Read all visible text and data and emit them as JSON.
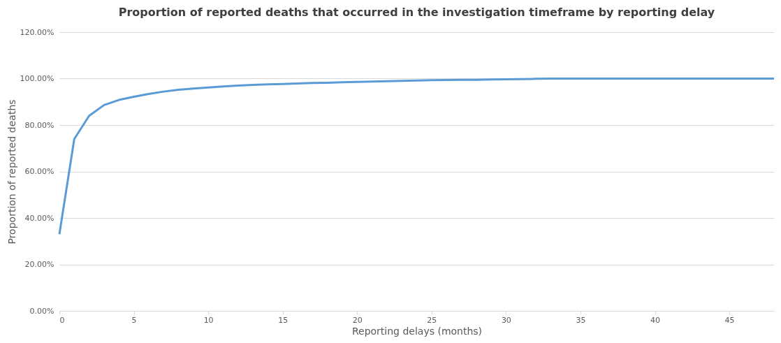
{
  "chart_data": {
    "type": "line",
    "title": "Proportion of reported deaths that occurred in the investigation timeframe by reporting delay",
    "xlabel": "Reporting delays (months)",
    "ylabel": "Proportion of reported deaths",
    "x": [
      0,
      1,
      2,
      3,
      4,
      5,
      6,
      7,
      8,
      9,
      10,
      11,
      12,
      13,
      14,
      15,
      16,
      17,
      18,
      19,
      20,
      21,
      22,
      23,
      24,
      25,
      26,
      27,
      28,
      29,
      30,
      31,
      32,
      33,
      34,
      35,
      36,
      37,
      38,
      39,
      40,
      41,
      42,
      43,
      44,
      45,
      46,
      47,
      48
    ],
    "series": [
      {
        "color": "#5b9bd5",
        "values": [
          33,
          74,
          84,
          88.6,
          90.8,
          92.2,
          93.4,
          94.4,
          95.2,
          95.7,
          96.2,
          96.6,
          97.0,
          97.3,
          97.5,
          97.7,
          97.9,
          98.1,
          98.2,
          98.4,
          98.6,
          98.7,
          98.9,
          99.0,
          99.2,
          99.3,
          99.4,
          99.5,
          99.5,
          99.6,
          99.7,
          99.8,
          99.9,
          100,
          100,
          100,
          100,
          100,
          100,
          100,
          100,
          100,
          100,
          100,
          100,
          100,
          100,
          100,
          100
        ]
      }
    ],
    "xlim": [
      0,
      48
    ],
    "xticks": [
      0,
      5,
      10,
      15,
      20,
      25,
      30,
      35,
      40,
      45
    ],
    "ylim": [
      0,
      120
    ],
    "yticks": [
      {
        "value": 0,
        "label": "0.00%"
      },
      {
        "value": 20,
        "label": "20.00%"
      },
      {
        "value": 40,
        "label": "40.00%"
      },
      {
        "value": 60,
        "label": "60.00%"
      },
      {
        "value": 80,
        "label": "80.00%"
      },
      {
        "value": 100,
        "label": "100.00%"
      },
      {
        "value": 120,
        "label": "120.00%"
      }
    ],
    "grid": "y",
    "marker": "none",
    "line_style": "solid"
  }
}
